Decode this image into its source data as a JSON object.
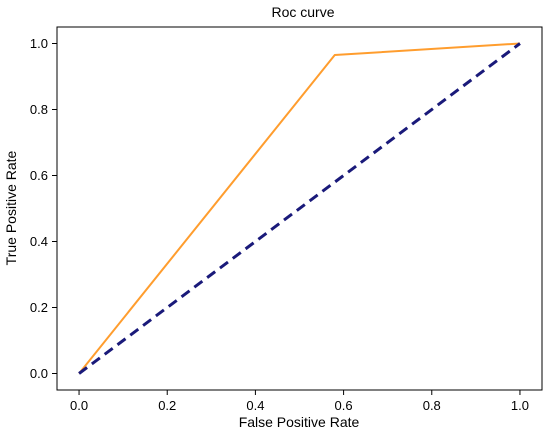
{
  "chart_data": {
    "type": "line",
    "title": "Roc curve",
    "xlabel": "False Positive Rate",
    "ylabel": "True Positive Rate",
    "xlim": [
      -0.05,
      1.05
    ],
    "ylim": [
      -0.05,
      1.05
    ],
    "xticks": [
      "0.0",
      "0.2",
      "0.4",
      "0.6",
      "0.8",
      "1.0"
    ],
    "yticks": [
      "0.0",
      "0.2",
      "0.4",
      "0.6",
      "0.8",
      "1.0"
    ],
    "grid": false,
    "series": [
      {
        "style": "solid",
        "color": "#ff9d2e",
        "x": [
          0.0,
          0.58,
          1.0
        ],
        "y": [
          0.0,
          0.965,
          1.0
        ]
      },
      {
        "style": "dashed",
        "color": "#1a1a7a",
        "x": [
          0.0,
          1.0
        ],
        "y": [
          0.0,
          1.0
        ]
      }
    ]
  }
}
